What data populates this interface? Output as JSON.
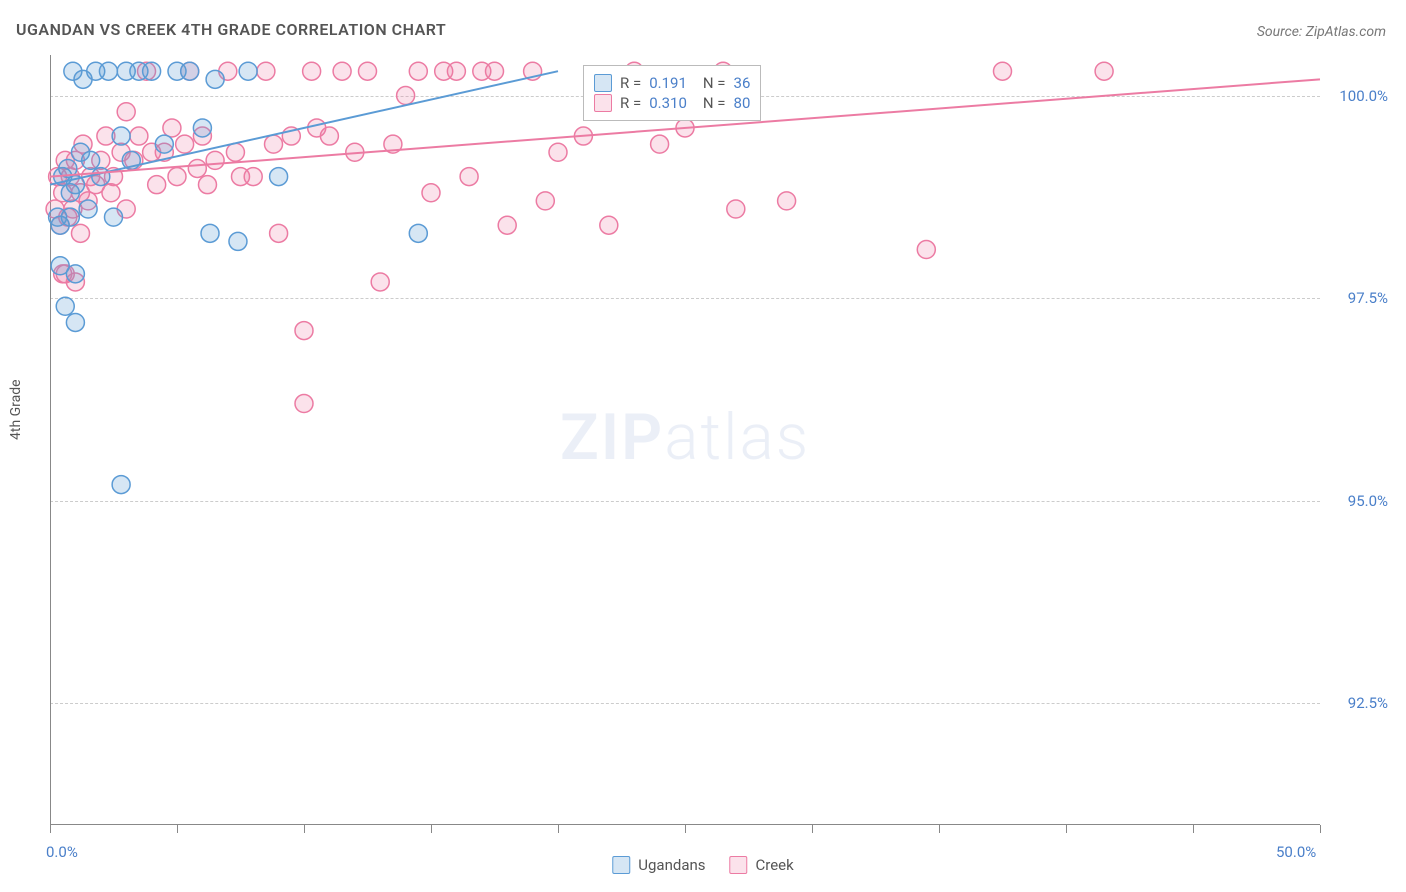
{
  "title": "UGANDAN VS CREEK 4TH GRADE CORRELATION CHART",
  "source": "Source: ZipAtlas.com",
  "y_axis_label": "4th Grade",
  "watermark_zip": "ZIP",
  "watermark_atlas": "atlas",
  "chart": {
    "type": "scatter",
    "xlim": [
      0,
      50
    ],
    "ylim": [
      91.0,
      100.5
    ],
    "x_ticks": [
      0,
      5,
      10,
      15,
      20,
      25,
      30,
      35,
      40,
      45,
      50
    ],
    "x_tick_labels": {
      "0": "0.0%",
      "50": "50.0%"
    },
    "y_ticks": [
      92.5,
      95.0,
      97.5,
      100.0
    ],
    "y_tick_labels": [
      "92.5%",
      "95.0%",
      "97.5%",
      "100.0%"
    ],
    "background_color": "#ffffff",
    "grid_color": "#cccccc",
    "axis_color": "#888888",
    "tick_label_color": "#4a7fc9",
    "label_fontsize": 14,
    "tick_fontsize": 15,
    "marker_radius": 9,
    "marker_stroke_width": 1.5,
    "marker_fill_opacity": 0.25,
    "line_width": 2
  },
  "series": {
    "ugandans": {
      "label": "Ugandans",
      "color": "#5b9bd5",
      "fill": "rgba(91,155,213,0.25)",
      "stroke": "#5b9bd5",
      "R": "0.191",
      "N": "36",
      "trend": {
        "x1": 0,
        "y1": 98.9,
        "x2": 20,
        "y2": 100.3
      },
      "points": [
        [
          0.3,
          98.5
        ],
        [
          0.4,
          97.9
        ],
        [
          0.4,
          98.4
        ],
        [
          0.5,
          99.0
        ],
        [
          0.6,
          97.4
        ],
        [
          0.7,
          99.1
        ],
        [
          0.8,
          98.8
        ],
        [
          0.8,
          98.5
        ],
        [
          0.9,
          100.3
        ],
        [
          1.0,
          97.8
        ],
        [
          1.0,
          98.9
        ],
        [
          1.2,
          99.3
        ],
        [
          1.3,
          100.2
        ],
        [
          1.5,
          98.6
        ],
        [
          1.6,
          99.2
        ],
        [
          1.8,
          100.3
        ],
        [
          2.0,
          99.0
        ],
        [
          2.3,
          100.3
        ],
        [
          2.5,
          98.5
        ],
        [
          2.8,
          99.5
        ],
        [
          3.0,
          100.3
        ],
        [
          3.2,
          99.2
        ],
        [
          3.5,
          100.3
        ],
        [
          4.0,
          100.3
        ],
        [
          4.5,
          99.4
        ],
        [
          5.0,
          100.3
        ],
        [
          5.5,
          100.3
        ],
        [
          6.0,
          99.6
        ],
        [
          6.3,
          98.3
        ],
        [
          6.5,
          100.2
        ],
        [
          7.4,
          98.2
        ],
        [
          7.8,
          100.3
        ],
        [
          9.0,
          99.0
        ],
        [
          2.8,
          95.2
        ],
        [
          14.5,
          98.3
        ],
        [
          1.0,
          97.2
        ]
      ]
    },
    "creek": {
      "label": "Creek",
      "color": "#ec7ba3",
      "fill": "rgba(236,123,163,0.22)",
      "stroke": "#ec7ba3",
      "R": "0.310",
      "N": "80",
      "trend": {
        "x1": 0,
        "y1": 99.0,
        "x2": 50,
        "y2": 100.2
      },
      "points": [
        [
          0.2,
          98.6
        ],
        [
          0.3,
          99.0
        ],
        [
          0.4,
          98.4
        ],
        [
          0.5,
          98.8
        ],
        [
          0.6,
          97.8
        ],
        [
          0.6,
          99.2
        ],
        [
          0.7,
          98.5
        ],
        [
          0.8,
          99.0
        ],
        [
          0.9,
          98.6
        ],
        [
          1.0,
          99.2
        ],
        [
          1.0,
          97.7
        ],
        [
          1.2,
          98.8
        ],
        [
          1.3,
          99.4
        ],
        [
          1.5,
          98.7
        ],
        [
          1.6,
          99.0
        ],
        [
          1.8,
          98.9
        ],
        [
          2.0,
          99.2
        ],
        [
          2.2,
          99.5
        ],
        [
          2.4,
          98.8
        ],
        [
          2.5,
          99.0
        ],
        [
          2.8,
          99.3
        ],
        [
          3.0,
          99.8
        ],
        [
          3.0,
          98.6
        ],
        [
          3.3,
          99.2
        ],
        [
          3.5,
          99.5
        ],
        [
          3.8,
          100.3
        ],
        [
          4.0,
          99.3
        ],
        [
          4.2,
          98.9
        ],
        [
          4.5,
          99.3
        ],
        [
          4.8,
          99.6
        ],
        [
          5.0,
          99.0
        ],
        [
          5.3,
          99.4
        ],
        [
          5.5,
          100.3
        ],
        [
          5.8,
          99.1
        ],
        [
          6.0,
          99.5
        ],
        [
          6.2,
          98.9
        ],
        [
          6.5,
          99.2
        ],
        [
          7.0,
          100.3
        ],
        [
          7.3,
          99.3
        ],
        [
          7.5,
          99.0
        ],
        [
          8.0,
          99.0
        ],
        [
          8.5,
          100.3
        ],
        [
          8.8,
          99.4
        ],
        [
          9.0,
          98.3
        ],
        [
          9.5,
          99.5
        ],
        [
          10.0,
          97.1
        ],
        [
          10.3,
          100.3
        ],
        [
          10.5,
          99.6
        ],
        [
          11.0,
          99.5
        ],
        [
          11.5,
          100.3
        ],
        [
          12.0,
          99.3
        ],
        [
          12.5,
          100.3
        ],
        [
          13.0,
          97.7
        ],
        [
          13.5,
          99.4
        ],
        [
          14.0,
          100.0
        ],
        [
          14.5,
          100.3
        ],
        [
          15.0,
          98.8
        ],
        [
          15.5,
          100.3
        ],
        [
          16.0,
          100.3
        ],
        [
          16.5,
          99.0
        ],
        [
          17.0,
          100.3
        ],
        [
          17.5,
          100.3
        ],
        [
          18.0,
          98.4
        ],
        [
          19.0,
          100.3
        ],
        [
          19.5,
          98.7
        ],
        [
          20.0,
          99.3
        ],
        [
          21.0,
          99.5
        ],
        [
          22.0,
          98.4
        ],
        [
          23.0,
          100.3
        ],
        [
          24.0,
          99.4
        ],
        [
          25.0,
          99.6
        ],
        [
          26.5,
          100.3
        ],
        [
          27.0,
          98.6
        ],
        [
          29.0,
          98.7
        ],
        [
          34.5,
          98.1
        ],
        [
          37.5,
          100.3
        ],
        [
          41.5,
          100.3
        ],
        [
          0.5,
          97.8
        ],
        [
          1.2,
          98.3
        ],
        [
          10.0,
          96.2
        ]
      ]
    }
  },
  "legend_top": {
    "R_label": "R  =",
    "N_label": "N  ="
  }
}
